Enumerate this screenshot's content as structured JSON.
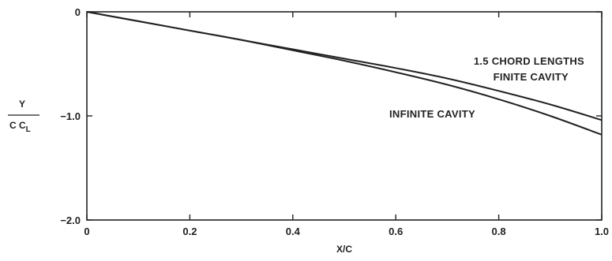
{
  "chart_data": {
    "type": "line",
    "xlabel": "X/C",
    "ylabel_top": "Y",
    "ylabel_bottom": "C C",
    "ylabel_subscript": "L",
    "xlim": [
      0,
      1.0
    ],
    "ylim": [
      -2.0,
      0
    ],
    "x_ticks": [
      0,
      0.2,
      0.4,
      0.6,
      0.8,
      1.0
    ],
    "x_tick_labels": [
      "0",
      "0.2",
      "0.4",
      "0.6",
      "0.8",
      "1.0"
    ],
    "y_ticks": [
      0,
      -1.0,
      -2.0
    ],
    "y_tick_labels": [
      "0",
      "−1.0",
      "−2.0"
    ],
    "grid": false,
    "series": [
      {
        "name": "1.5 CHORD LENGTHS FINITE CAVITY",
        "x": [
          0,
          0.1,
          0.2,
          0.3,
          0.4,
          0.5,
          0.6,
          0.7,
          0.8,
          0.9,
          1.0
        ],
        "y": [
          0,
          -0.09,
          -0.18,
          -0.27,
          -0.36,
          -0.45,
          -0.54,
          -0.64,
          -0.76,
          -0.89,
          -1.04
        ]
      },
      {
        "name": "INFINITE CAVITY",
        "x": [
          0,
          0.1,
          0.2,
          0.3,
          0.4,
          0.5,
          0.6,
          0.7,
          0.8,
          0.9,
          1.0
        ],
        "y": [
          0,
          -0.09,
          -0.18,
          -0.27,
          -0.37,
          -0.47,
          -0.58,
          -0.7,
          -0.84,
          -1.0,
          -1.18
        ]
      }
    ],
    "annotations": {
      "finite_line1": "1.5 CHORD LENGTHS",
      "finite_line2": "FINITE CAVITY",
      "infinite": "INFINITE CAVITY"
    }
  }
}
